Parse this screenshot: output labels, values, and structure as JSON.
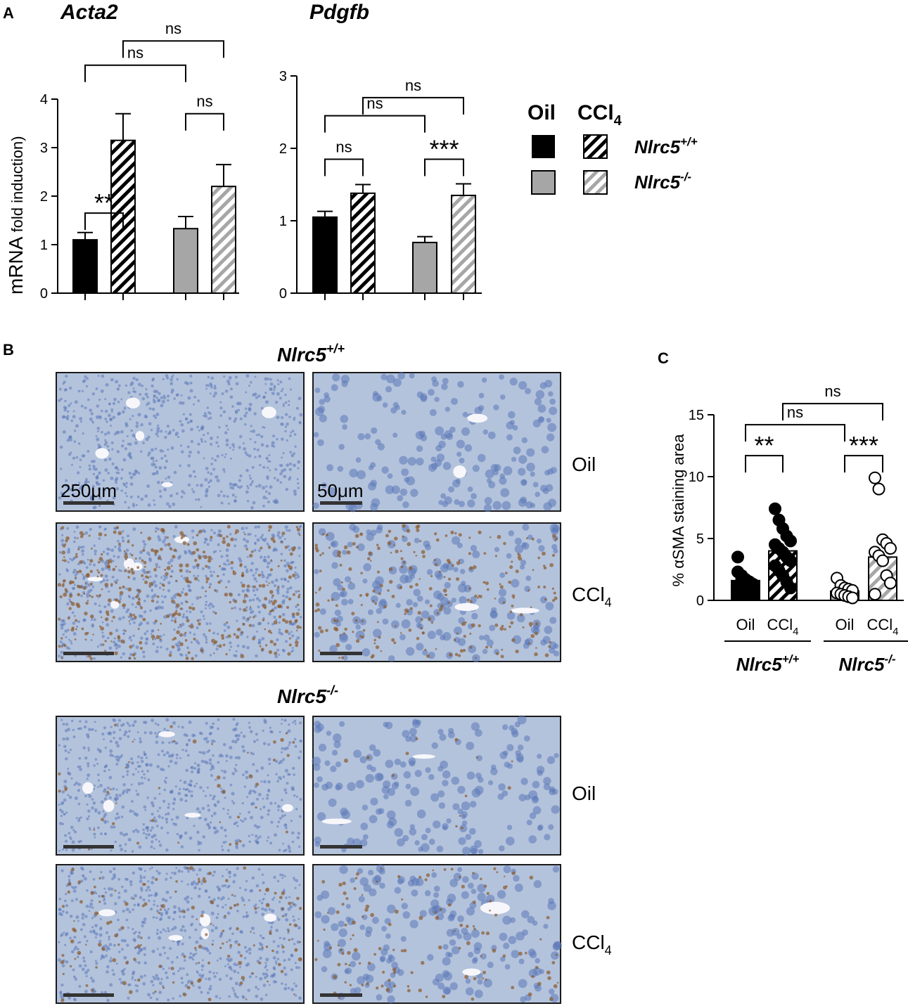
{
  "panel_labels": {
    "a": "A",
    "b": "B",
    "c": "C"
  },
  "legend": {
    "oil": "Oil",
    "ccl4_base": "CCl",
    "ccl4_sub": "4",
    "wt_base": "Nlrc5",
    "wt_sup": "+/+",
    "ko_base": "Nlrc5",
    "ko_sup": "-/-"
  },
  "micrographs": {
    "title_wt_base": "Nlrc5",
    "title_wt_sup": "+/+",
    "title_ko_base": "Nlrc5",
    "title_ko_sup": "-/-",
    "scale_low": "250μm",
    "scale_high": "50μm",
    "row_oil": "Oil",
    "row_ccl4_base": "CCl",
    "row_ccl4_sub": "4",
    "colors": {
      "tissue": "#b4c3dc",
      "nucleus": "#5b78b8",
      "stain": "#8a5a2b",
      "vessel": "#f7f7fb"
    }
  },
  "colors": {
    "wt": "#000000",
    "ko": "#a6a6a6"
  },
  "chart_data": [
    {
      "id": "acta2",
      "type": "bar",
      "title": "Acta2",
      "ylabel_big": "mRNA",
      "ylabel_small": " fold induction)",
      "ylim": [
        0,
        4
      ],
      "yticks": [
        "0",
        "1",
        "2",
        "3",
        "4"
      ],
      "series": [
        {
          "group": "Nlrc5+/+",
          "treatment": "Oil",
          "value": 1.1,
          "error": 0.15
        },
        {
          "group": "Nlrc5+/+",
          "treatment": "CCl4",
          "value": 3.15,
          "error": 0.55
        },
        {
          "group": "Nlrc5-/-",
          "treatment": "Oil",
          "value": 1.33,
          "error": 0.25
        },
        {
          "group": "Nlrc5-/-",
          "treatment": "CCl4",
          "value": 2.2,
          "error": 0.45
        }
      ],
      "significance": [
        {
          "from": 0,
          "to": 1,
          "level": 1.65,
          "label": "**"
        },
        {
          "from": 2,
          "to": 3,
          "level": 3.7,
          "label": "ns"
        },
        {
          "from": 0,
          "to": 2,
          "level": 4.7,
          "label": "ns"
        },
        {
          "from": 1,
          "to": 3,
          "level": 5.2,
          "label": "ns"
        }
      ]
    },
    {
      "id": "pdgfb",
      "type": "bar",
      "title": "Pdgfb",
      "ylim": [
        0,
        3
      ],
      "yticks": [
        "0",
        "1",
        "2",
        "3"
      ],
      "series": [
        {
          "group": "Nlrc5+/+",
          "treatment": "Oil",
          "value": 1.05,
          "error": 0.08
        },
        {
          "group": "Nlrc5+/+",
          "treatment": "CCl4",
          "value": 1.38,
          "error": 0.12
        },
        {
          "group": "Nlrc5-/-",
          "treatment": "Oil",
          "value": 0.7,
          "error": 0.08
        },
        {
          "group": "Nlrc5-/-",
          "treatment": "CCl4",
          "value": 1.35,
          "error": 0.16
        }
      ],
      "significance": [
        {
          "from": 0,
          "to": 1,
          "level": 1.85,
          "label": "ns"
        },
        {
          "from": 2,
          "to": 3,
          "level": 1.85,
          "label": "***"
        },
        {
          "from": 0,
          "to": 2,
          "level": 2.45,
          "label": "ns"
        },
        {
          "from": 1,
          "to": 3,
          "level": 2.7,
          "label": "ns"
        }
      ]
    },
    {
      "id": "asma",
      "type": "scatter",
      "ylabel": "% αSMA staining area",
      "ylim": [
        0,
        15
      ],
      "yticks": [
        "0",
        "5",
        "10",
        "15"
      ],
      "xlabels": [
        "Oil",
        "CCl",
        "Oil",
        "CCl"
      ],
      "xlabel_subs": [
        "",
        "4",
        "",
        "4"
      ],
      "group_labels": [
        {
          "base": "Nlrc5",
          "sup": "+/+"
        },
        {
          "base": "Nlrc5",
          "sup": "-/-"
        }
      ],
      "bars": [
        {
          "group": "Nlrc5+/+",
          "treatment": "Oil",
          "mean": 1.6
        },
        {
          "group": "Nlrc5+/+",
          "treatment": "CCl4",
          "mean": 4.0
        },
        {
          "group": "Nlrc5-/-",
          "treatment": "Oil",
          "mean": 0.75
        },
        {
          "group": "Nlrc5-/-",
          "treatment": "CCl4",
          "mean": 3.5
        }
      ],
      "points": [
        [
          3.5,
          2.0,
          1.7,
          1.5,
          1.3,
          1.2,
          1.0,
          0.9,
          0.7,
          0.5,
          2.3,
          1.8
        ],
        [
          7.4,
          6.5,
          5.8,
          5.2,
          4.8,
          4.5,
          4.2,
          3.9,
          3.5,
          3.2,
          2.8,
          2.4,
          2.0,
          1.5,
          1.0
        ],
        [
          1.8,
          1.2,
          1.0,
          0.9,
          0.8,
          0.6,
          0.5,
          0.4,
          0.3,
          0.2
        ],
        [
          9.9,
          9.0,
          4.9,
          4.6,
          4.2,
          3.9,
          3.6,
          3.2,
          2.0,
          1.4,
          0.5
        ]
      ],
      "significance": [
        {
          "from": 0,
          "to": 1,
          "level": 11.7,
          "label": "**"
        },
        {
          "from": 2,
          "to": 3,
          "level": 11.7,
          "label": "***"
        },
        {
          "from": 0,
          "to": 2,
          "level": 14.2,
          "label": "ns"
        },
        {
          "from": 1,
          "to": 3,
          "level": 15.9,
          "label": "ns"
        }
      ]
    }
  ]
}
